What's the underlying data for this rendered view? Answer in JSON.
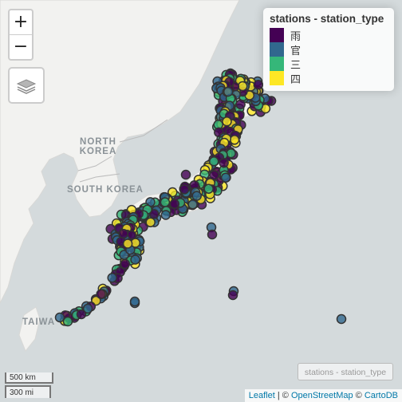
{
  "map": {
    "labels": {
      "north_korea_1": "NORTH",
      "north_korea_2": "KOREA",
      "south_korea": "SOUTH KOREA",
      "taiwan": "TAIWA"
    },
    "colors": {
      "sea": "#d4dadc",
      "land": "#f2f2f0",
      "border": "#bcbcbc"
    }
  },
  "zoom": {
    "in": "+",
    "out": "−"
  },
  "layers_icon": "layers-icon",
  "legend": {
    "title": "stations - station_type",
    "items": [
      {
        "label": "雨",
        "color": "#440154"
      },
      {
        "label": "官",
        "color": "#31688e"
      },
      {
        "label": "三",
        "color": "#35b779"
      },
      {
        "label": "四",
        "color": "#fde725"
      }
    ]
  },
  "mini_legend": "stations - station_type",
  "scale": {
    "km": "500 km",
    "mi": "300 mi"
  },
  "attribution": {
    "leaflet": "Leaflet",
    "sep1": " | © ",
    "osm": "OpenStreetMap",
    "sep2": " © ",
    "carto": "CartoDB"
  }
}
